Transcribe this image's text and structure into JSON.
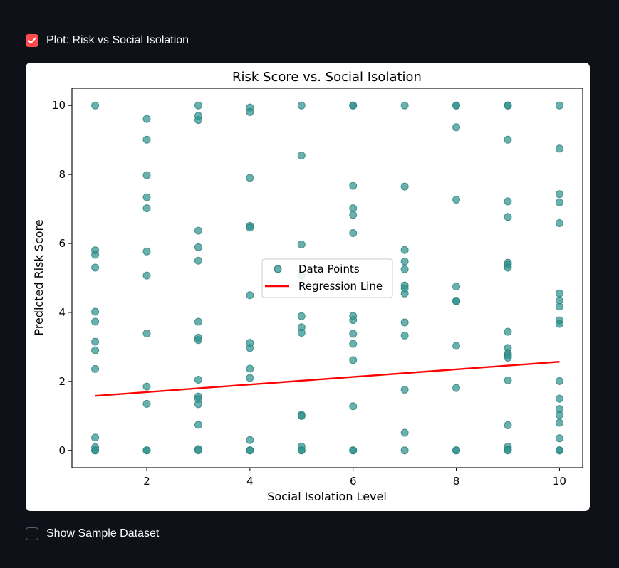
{
  "controls": {
    "plot_checkbox": {
      "label": "Plot: Risk vs Social Isolation",
      "checked": true
    },
    "sample_checkbox": {
      "label": "Show Sample Dataset",
      "checked": false
    }
  },
  "colors": {
    "background": "#0e1117",
    "checkbox_accent": "#ff4b4b",
    "points": "#2f938f",
    "regression": "#ff0000"
  },
  "chart_data": {
    "type": "scatter",
    "title": "Risk Score vs. Social Isolation",
    "xlabel": "Social Isolation Level",
    "ylabel": "Predicted Risk Score",
    "xlim": [
      0.55,
      10.45
    ],
    "ylim": [
      -0.5,
      10.5
    ],
    "xticks": [
      2,
      4,
      6,
      8,
      10
    ],
    "yticks": [
      0,
      2,
      4,
      6,
      8,
      10
    ],
    "grid": false,
    "legend_position": "center",
    "series": [
      {
        "name": "Data Points",
        "kind": "scatter",
        "points": [
          [
            1,
            10
          ],
          [
            1,
            5.8
          ],
          [
            1,
            5.67
          ],
          [
            1,
            5.3
          ],
          [
            1,
            4.02
          ],
          [
            1,
            3.73
          ],
          [
            1,
            3.15
          ],
          [
            1,
            2.9
          ],
          [
            1,
            2.36
          ],
          [
            1,
            0.37
          ],
          [
            1,
            0.09
          ],
          [
            1,
            0
          ],
          [
            1,
            0
          ],
          [
            2,
            9.61
          ],
          [
            2,
            9.01
          ],
          [
            2,
            7.98
          ],
          [
            2,
            7.34
          ],
          [
            2,
            7.02
          ],
          [
            2,
            5.77
          ],
          [
            2,
            5.07
          ],
          [
            2,
            3.39
          ],
          [
            2,
            1.85
          ],
          [
            2,
            1.35
          ],
          [
            2,
            0
          ],
          [
            2,
            0
          ],
          [
            3,
            10
          ],
          [
            3,
            9.7
          ],
          [
            3,
            9.58
          ],
          [
            3,
            6.37
          ],
          [
            3,
            5.89
          ],
          [
            3,
            5.5
          ],
          [
            3,
            3.73
          ],
          [
            3,
            3.27
          ],
          [
            3,
            3.2
          ],
          [
            3,
            2.05
          ],
          [
            3,
            1.56
          ],
          [
            3,
            1.49
          ],
          [
            3,
            1.34
          ],
          [
            3,
            0.74
          ],
          [
            3,
            0.04
          ],
          [
            3,
            0
          ],
          [
            4,
            9.94
          ],
          [
            4,
            9.81
          ],
          [
            4,
            7.9
          ],
          [
            4,
            6.51
          ],
          [
            4,
            6.46
          ],
          [
            4,
            4.5
          ],
          [
            4,
            3.12
          ],
          [
            4,
            2.97
          ],
          [
            4,
            2.37
          ],
          [
            4,
            2.1
          ],
          [
            4,
            0.3
          ],
          [
            4,
            0
          ],
          [
            4,
            0
          ],
          [
            5,
            10
          ],
          [
            5,
            8.55
          ],
          [
            5,
            5.97
          ],
          [
            5,
            5.07
          ],
          [
            5,
            3.89
          ],
          [
            5,
            3.57
          ],
          [
            5,
            3.41
          ],
          [
            5,
            1.03
          ],
          [
            5,
            1
          ],
          [
            5,
            0.11
          ],
          [
            5,
            0
          ],
          [
            5,
            0
          ],
          [
            6,
            10
          ],
          [
            6,
            10
          ],
          [
            6,
            7.67
          ],
          [
            6,
            7.02
          ],
          [
            6,
            6.83
          ],
          [
            6,
            6.3
          ],
          [
            6,
            3.9
          ],
          [
            6,
            3.78
          ],
          [
            6,
            3.38
          ],
          [
            6,
            3.09
          ],
          [
            6,
            2.62
          ],
          [
            6,
            1.28
          ],
          [
            6,
            0
          ],
          [
            6,
            0
          ],
          [
            7,
            10
          ],
          [
            7,
            7.65
          ],
          [
            7,
            5.81
          ],
          [
            7,
            5.48
          ],
          [
            7,
            5.25
          ],
          [
            7,
            4.78
          ],
          [
            7,
            4.7
          ],
          [
            7,
            4.55
          ],
          [
            7,
            3.71
          ],
          [
            7,
            3.33
          ],
          [
            7,
            1.76
          ],
          [
            7,
            0.51
          ],
          [
            7,
            0
          ],
          [
            8,
            10
          ],
          [
            8,
            10
          ],
          [
            8,
            9.37
          ],
          [
            8,
            7.27
          ],
          [
            8,
            4.75
          ],
          [
            8,
            4.34
          ],
          [
            8,
            4.32
          ],
          [
            8,
            3.03
          ],
          [
            8,
            1.81
          ],
          [
            8,
            0
          ],
          [
            8,
            0
          ],
          [
            9,
            10
          ],
          [
            9,
            10
          ],
          [
            9,
            9.01
          ],
          [
            9,
            7.22
          ],
          [
            9,
            6.77
          ],
          [
            9,
            5.44
          ],
          [
            9,
            5.38
          ],
          [
            9,
            5.3
          ],
          [
            9,
            3.44
          ],
          [
            9,
            2.97
          ],
          [
            9,
            2.81
          ],
          [
            9,
            2.75
          ],
          [
            9,
            2.69
          ],
          [
            9,
            2.03
          ],
          [
            9,
            0.73
          ],
          [
            9,
            0.11
          ],
          [
            9,
            0.02
          ],
          [
            9,
            0
          ],
          [
            10,
            10
          ],
          [
            10,
            8.75
          ],
          [
            10,
            7.43
          ],
          [
            10,
            7.19
          ],
          [
            10,
            6.59
          ],
          [
            10,
            4.55
          ],
          [
            10,
            4.35
          ],
          [
            10,
            4.17
          ],
          [
            10,
            3.77
          ],
          [
            10,
            3.67
          ],
          [
            10,
            2.01
          ],
          [
            10,
            1.5
          ],
          [
            10,
            1.2
          ],
          [
            10,
            1.03
          ],
          [
            10,
            0.8
          ],
          [
            10,
            0.35
          ],
          [
            10,
            0
          ],
          [
            10,
            0
          ]
        ]
      },
      {
        "name": "Regression Line",
        "kind": "line",
        "x": [
          1,
          10
        ],
        "y": [
          1.58,
          2.57
        ]
      }
    ]
  }
}
